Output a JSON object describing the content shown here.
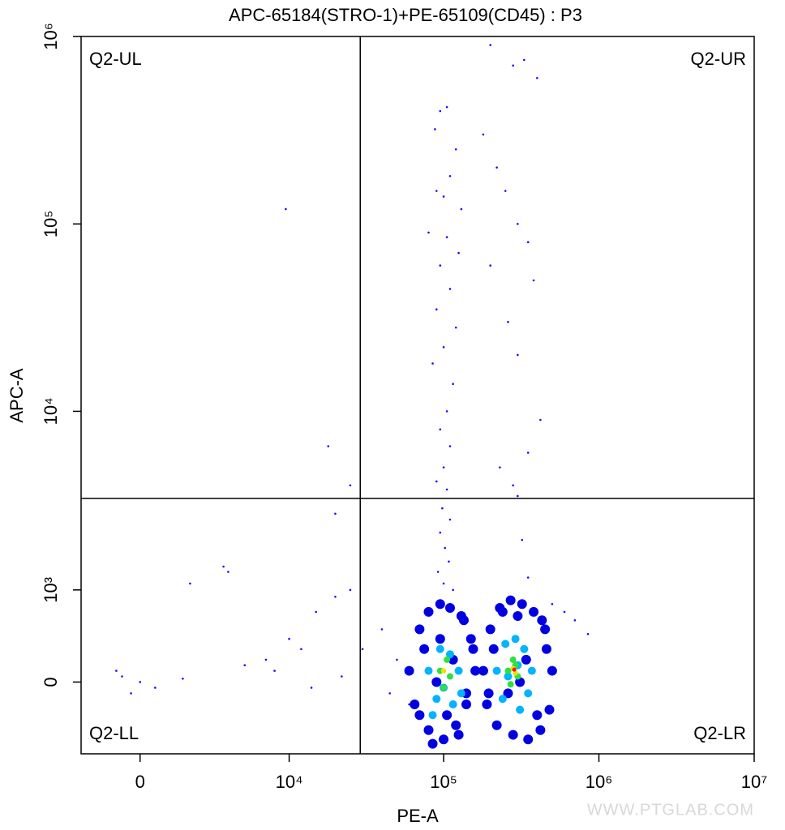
{
  "chart_data": {
    "type": "scatter",
    "title": "APC-65184(STRO-1)+PE-65109(CD45) : P3",
    "xlabel": "PE-A",
    "ylabel": "APC-A",
    "xscale": {
      "type": "asinh",
      "cofactor": 2220
    },
    "yscale": {
      "type": "asinh",
      "cofactor": 720
    },
    "xlim": [
      -2200,
      10000000
    ],
    "ylim": [
      -720,
      1000000
    ],
    "xticks": [
      0,
      {
        "value": 10000,
        "label": "10⁴"
      },
      {
        "value": 100000,
        "label": "10⁵"
      },
      {
        "value": 1000000,
        "label": "10⁶"
      },
      {
        "value": 10000000,
        "label": "10⁷"
      }
    ],
    "yticks": [
      0,
      {
        "value": 1000,
        "label": "10³"
      },
      {
        "value": 10000,
        "label": "10⁴"
      },
      {
        "value": 100000,
        "label": "10⁵"
      },
      {
        "value": 1000000,
        "label": "10⁶"
      }
    ],
    "gate": {
      "x": 29000,
      "y": 3400
    },
    "quadrants": {
      "UL": "Q2-UL",
      "UR": "Q2-UR",
      "LL": "Q2-LL",
      "LR": "Q2-LR"
    },
    "watermark": "WWW.PTGLAB.COM",
    "groups": [
      {
        "color": "#1010ff",
        "x": [
          95000,
          105000,
          88000,
          120000,
          110000,
          90000,
          100000,
          130000,
          80000,
          105000,
          125000,
          95000,
          110000,
          90000,
          120000,
          100000,
          85000,
          115000,
          105000,
          95000,
          110000,
          100000,
          90000,
          105000,
          98000,
          110000,
          95000,
          102000,
          108000,
          92000,
          100000,
          115000,
          200000,
          280000,
          330000,
          400000,
          180000,
          220000,
          250000,
          300000,
          350000,
          200000,
          380000,
          260000,
          300000,
          420000,
          350000,
          230000,
          280000,
          300000,
          320000,
          350000,
          500000,
          600000,
          700000,
          850000,
          9500,
          18000,
          25000,
          20000,
          3500,
          3800,
          1800,
          1500,
          -800,
          -600,
          0,
          500,
          -300,
          7000,
          10000,
          12000,
          15000,
          20000,
          25000,
          5000,
          8000,
          14000,
          22000,
          30000,
          40000,
          50000,
          45000,
          60000
        ],
        "y": [
          400000,
          420000,
          320000,
          250000,
          180000,
          150000,
          140000,
          120000,
          90000,
          85000,
          70000,
          60000,
          45000,
          35000,
          28000,
          22000,
          18000,
          14000,
          10000,
          8000,
          6500,
          5000,
          4200,
          3800,
          3000,
          2600,
          2200,
          1800,
          1500,
          1300,
          1100,
          1000,
          900000,
          700000,
          750000,
          600000,
          300000,
          200000,
          150000,
          100000,
          80000,
          60000,
          50000,
          30000,
          20000,
          9000,
          6000,
          5000,
          4000,
          3500,
          2000,
          1200,
          800,
          700,
          600,
          450,
          120000,
          6500,
          4000,
          2800,
          1400,
          1300,
          1100,
          30,
          100,
          50,
          0,
          -50,
          -100,
          200,
          400,
          300,
          700,
          900,
          1000,
          150,
          100,
          -50,
          50,
          300,
          500,
          200,
          -100,
          -200
        ]
      },
      {
        "color": "#0000e0",
        "x": [
          60000,
          70000,
          80000,
          95000,
          110000,
          130000,
          150000,
          160000,
          140000,
          120000,
          100000,
          80000,
          65000,
          70000,
          90000,
          115000,
          140000,
          155000,
          75000,
          85000,
          125000,
          135000,
          95000,
          105000,
          180000,
          200000,
          230000,
          270000,
          320000,
          380000,
          450000,
          500000,
          480000,
          420000,
          350000,
          280000,
          220000,
          190000,
          210000,
          260000,
          300000,
          400000,
          460000,
          240000,
          340000,
          430000,
          195000,
          310000
        ],
        "y": [
          100,
          500,
          700,
          800,
          750,
          650,
          400,
          100,
          -200,
          -400,
          -550,
          -450,
          -200,
          -300,
          0,
          200,
          -100,
          300,
          300,
          -600,
          -500,
          600,
          400,
          -300,
          100,
          500,
          750,
          850,
          800,
          700,
          500,
          100,
          -250,
          -450,
          -550,
          -500,
          -400,
          -200,
          300,
          -100,
          650,
          -300,
          300,
          700,
          200,
          600,
          -100,
          0
        ]
      },
      {
        "color": "#00b4ff",
        "x": [
          80000,
          95000,
          110000,
          125000,
          90000,
          115000,
          100000,
          85000,
          130000,
          220000,
          250000,
          290000,
          330000,
          370000,
          240000,
          310000,
          350000,
          260000,
          300000
        ],
        "y": [
          100,
          300,
          250,
          100,
          -150,
          -200,
          -50,
          -300,
          -100,
          100,
          350,
          400,
          300,
          100,
          -150,
          -250,
          -100,
          50,
          150
        ]
      },
      {
        "color": "#30e040",
        "x": [
          95000,
          105000,
          110000,
          100000,
          260000,
          280000,
          300000,
          270000,
          290000
        ],
        "y": [
          100,
          200,
          50,
          -50,
          100,
          200,
          50,
          -20,
          150
        ]
      },
      {
        "color": "#f0e000",
        "x": [
          100000,
          280000,
          290000
        ],
        "y": [
          100,
          120,
          80
        ]
      },
      {
        "color": "#ff1010",
        "x": [
          285000
        ],
        "y": [
          110
        ]
      }
    ]
  }
}
